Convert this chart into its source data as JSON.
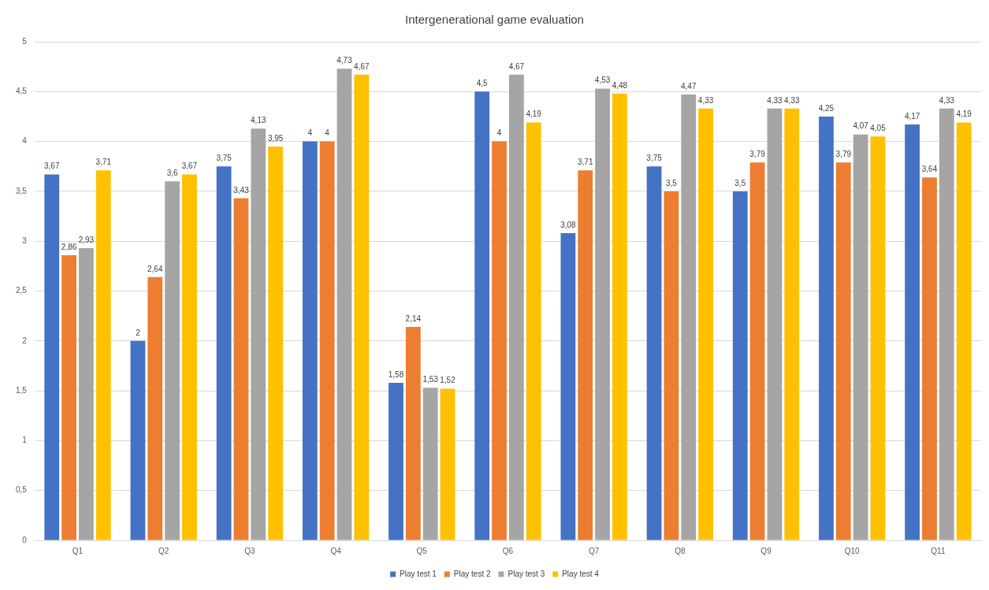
{
  "chart_data": {
    "type": "bar",
    "title": "Intergenerational game evaluation",
    "categories": [
      "Q1",
      "Q2",
      "Q3",
      "Q4",
      "Q5",
      "Q6",
      "Q7",
      "Q8",
      "Q9",
      "Q10",
      "Q11"
    ],
    "series": [
      {
        "name": "Play test 1",
        "color": "#4472c4",
        "values": [
          3.67,
          2,
          3.75,
          4,
          1.58,
          4.5,
          3.08,
          3.75,
          3.5,
          4.25,
          4.17
        ],
        "value_labels": [
          "3,67",
          "2",
          "3,75",
          "4",
          "1,58",
          "4,5",
          "3,08",
          "3,75",
          "3,5",
          "4,25",
          "4,17"
        ]
      },
      {
        "name": "Play test 2",
        "color": "#ed7d31",
        "values": [
          2.86,
          2.64,
          3.43,
          4,
          2.14,
          4,
          3.71,
          3.5,
          3.79,
          3.79,
          3.64
        ],
        "value_labels": [
          "2,86",
          "2,64",
          "3,43",
          "4",
          "2,14",
          "4",
          "3,71",
          "3,5",
          "3,79",
          "3,79",
          "3,64"
        ]
      },
      {
        "name": "Play test 3",
        "color": "#a5a5a5",
        "values": [
          2.93,
          3.6,
          4.13,
          4.73,
          1.53,
          4.67,
          4.53,
          4.47,
          4.33,
          4.07,
          4.33
        ],
        "value_labels": [
          "2,93",
          "3,6",
          "4,13",
          "4,73",
          "1,53",
          "4,67",
          "4,53",
          "4,47",
          "4,33",
          "4,07",
          "4,33"
        ]
      },
      {
        "name": "Play test 4",
        "color": "#ffc000",
        "values": [
          3.71,
          3.67,
          3.95,
          4.67,
          1.52,
          4.19,
          4.48,
          4.33,
          4.33,
          4.05,
          4.19
        ],
        "value_labels": [
          "3,71",
          "3,67",
          "3,95",
          "4,67",
          "1,52",
          "4,19",
          "4,48",
          "4,33",
          "4,33",
          "4,05",
          "4,19"
        ]
      }
    ],
    "ylim": [
      0,
      5
    ],
    "yticks": [
      0,
      {
        "value": 0.5,
        "label": "0,5"
      },
      1,
      {
        "value": 1.5,
        "label": "1,5"
      },
      2,
      {
        "value": 2.5,
        "label": "2,5"
      },
      3,
      {
        "value": 3.5,
        "label": "3,5"
      },
      4,
      {
        "value": 4.5,
        "label": "4,5"
      },
      5
    ],
    "grid": "y",
    "legend": "bottom"
  }
}
